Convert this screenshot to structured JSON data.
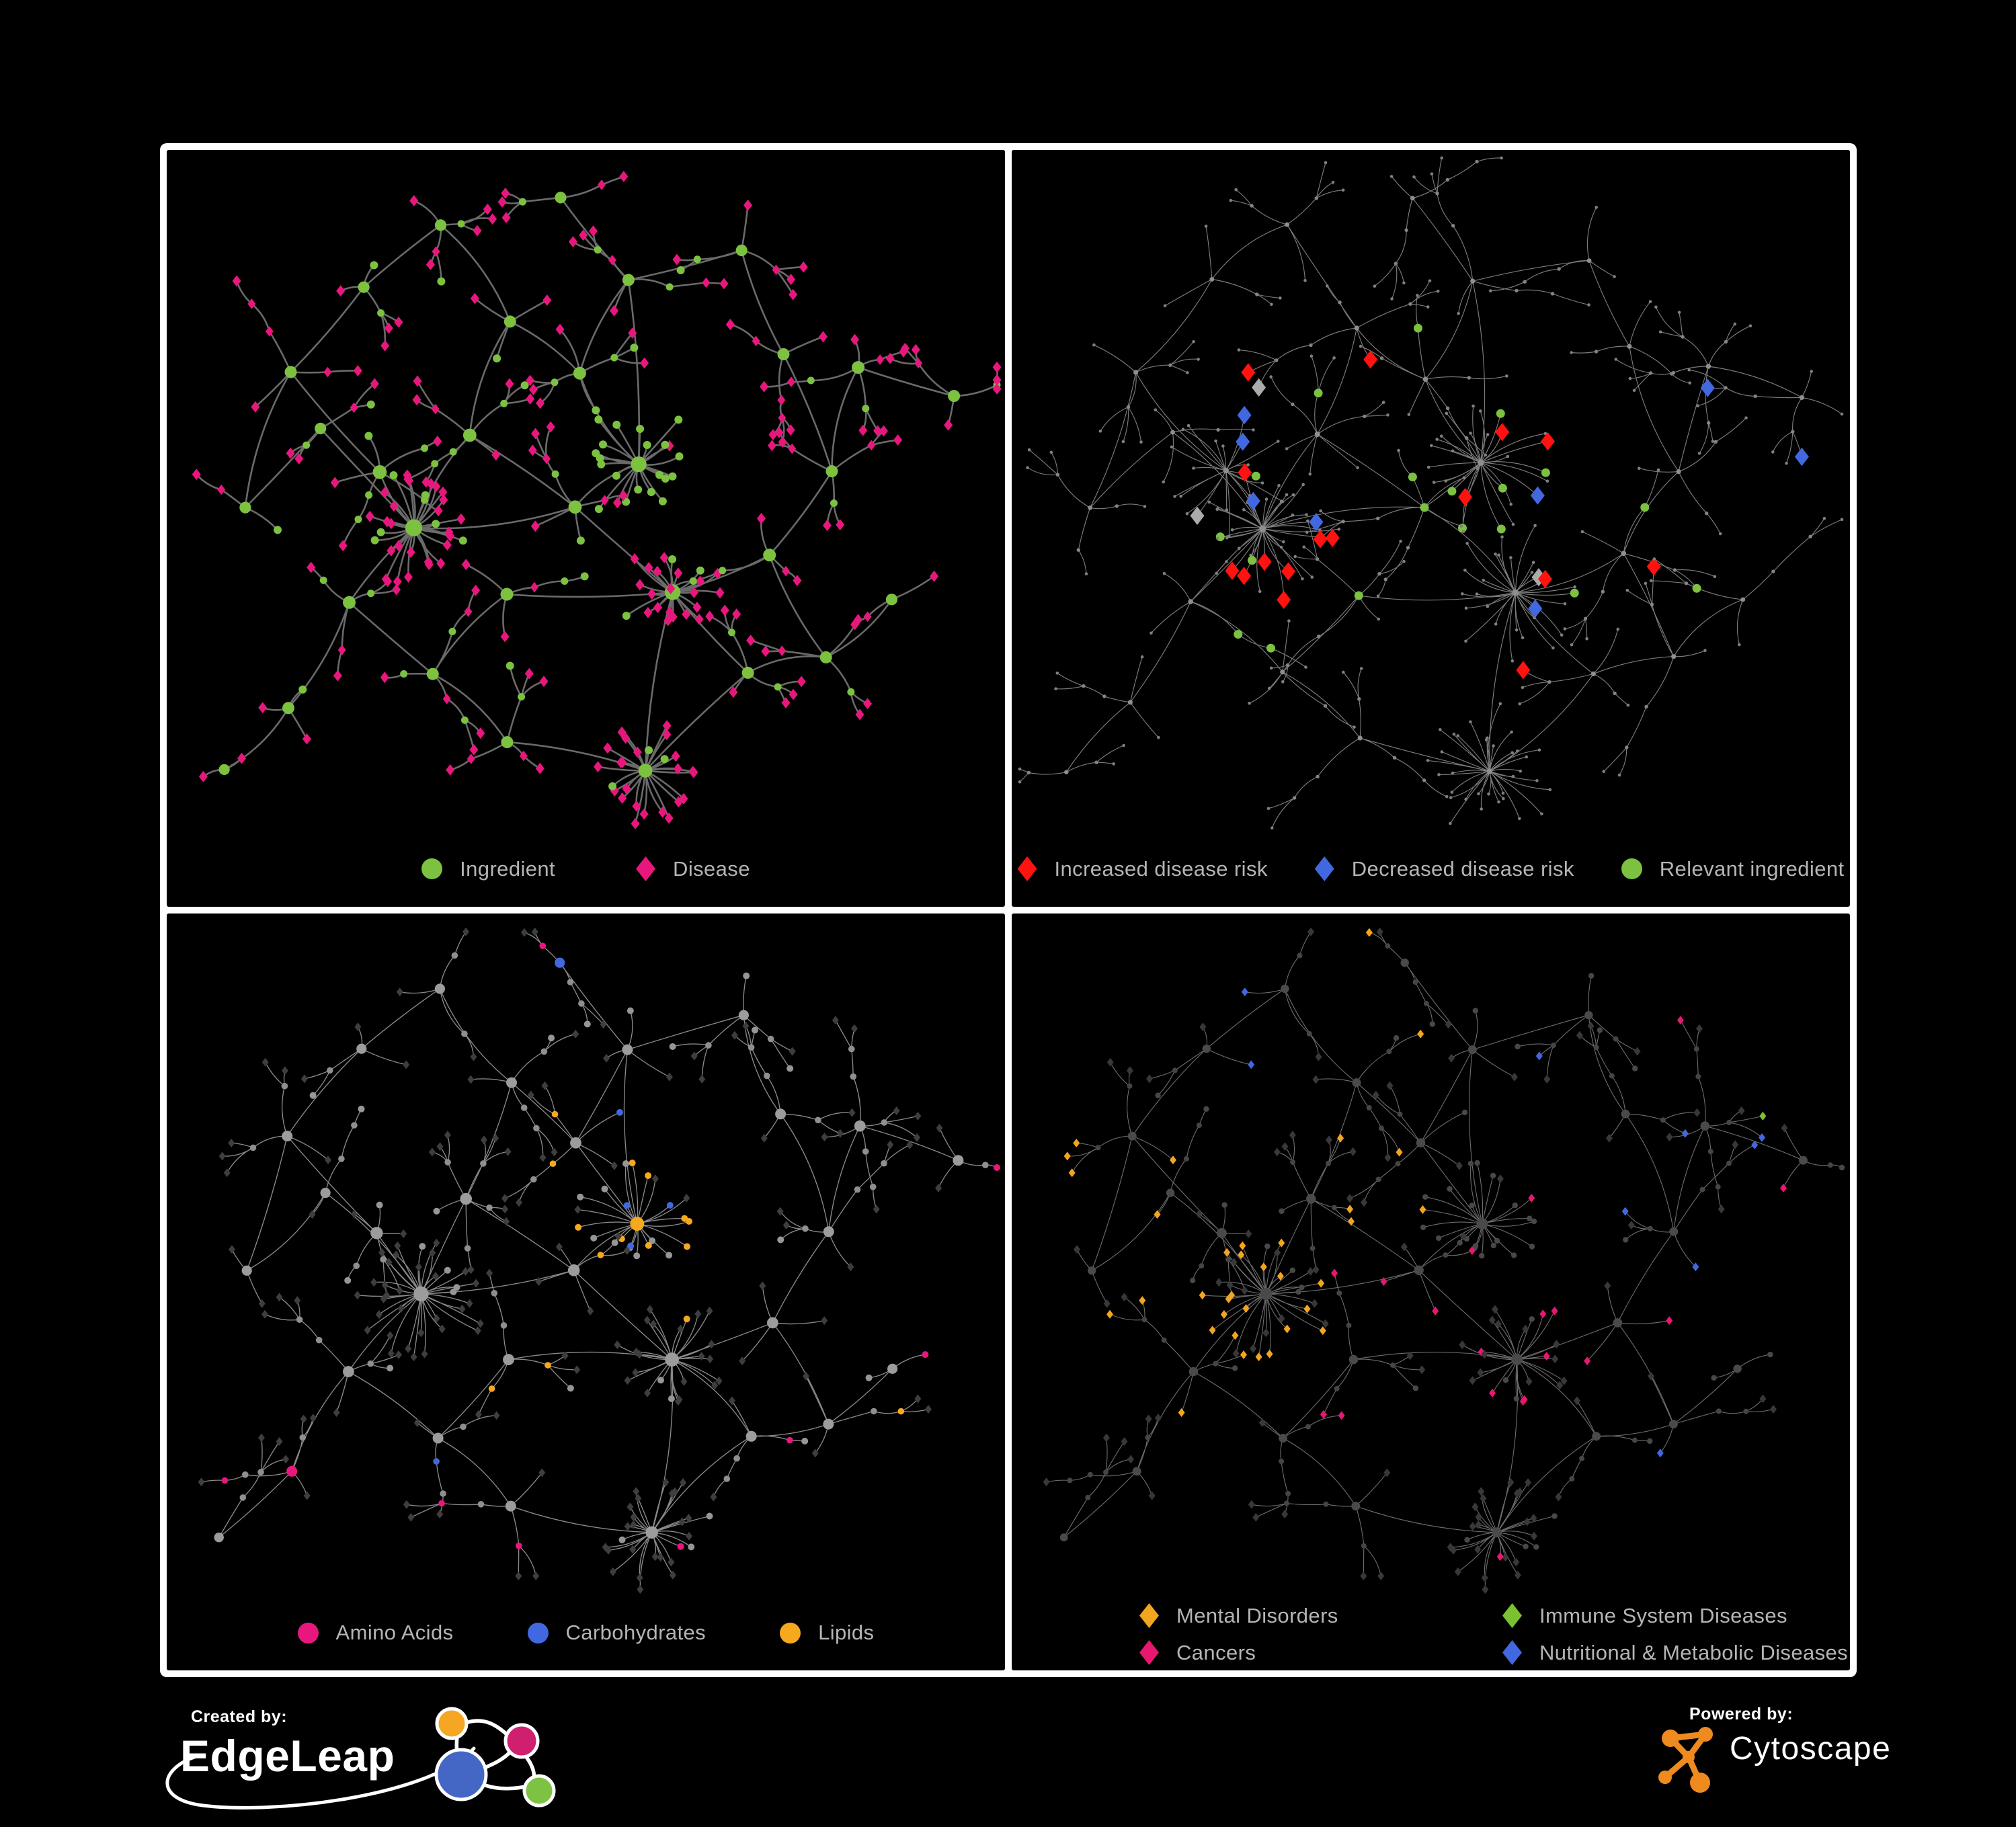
{
  "page": {
    "background": "#000000",
    "frame_color": "#ffffff"
  },
  "footer": {
    "created_by_label": "Created by:",
    "created_by_brand": "EdgeLeap",
    "powered_by_label": "Powered by:",
    "powered_by_brand": "Cytoscape",
    "edgeleap_logo_colors": {
      "orange": "#F5A623",
      "pink": "#D01F6F",
      "blue": "#4467C6",
      "green": "#7DC242",
      "stroke": "#ffffff"
    },
    "cytoscape_logo_color": "#EF8A1F"
  },
  "network": {
    "seeds": {
      "A": 1337,
      "B": 4242,
      "C": 9001
    },
    "spread": {
      "A": 1.0,
      "B": 1.22,
      "C": 1.08
    },
    "leaf_mult": {
      "A": 1.0,
      "B": 1.25,
      "C": 1.05
    },
    "hubs": [
      [
        0.285,
        0.573,
        30,
        1.7
      ],
      [
        0.233,
        0.475,
        16,
        1.2
      ],
      [
        0.353,
        0.42,
        14,
        1.1
      ],
      [
        0.567,
        0.464,
        22,
        1.5,
        0.85
      ],
      [
        0.61,
        0.671,
        22,
        1.5
      ],
      [
        0.49,
        0.323,
        12,
        1.0
      ],
      [
        0.404,
        0.236,
        10,
        0.9
      ],
      [
        0.319,
        0.073,
        8,
        0.8
      ],
      [
        0.216,
        0.171,
        8,
        0.8
      ],
      [
        0.122,
        0.323,
        8,
        0.9
      ],
      [
        0.07,
        0.54,
        6,
        0.8
      ],
      [
        0.199,
        0.692,
        10,
        1.0
      ],
      [
        0.122,
        0.855,
        8,
        0.9
      ],
      [
        0.036,
        0.964,
        5,
        0.7
      ],
      [
        0.31,
        0.801,
        9,
        0.9
      ],
      [
        0.404,
        0.91,
        8,
        0.9
      ],
      [
        0.58,
        0.955,
        26,
        1.2
      ],
      [
        0.713,
        0.801,
        9,
        0.9
      ],
      [
        0.807,
        0.779,
        8,
        0.9
      ],
      [
        0.893,
        0.692,
        6,
        0.8
      ],
      [
        0.739,
        0.616,
        10,
        1.0
      ],
      [
        0.816,
        0.475,
        9,
        0.9
      ],
      [
        0.85,
        0.307,
        12,
        1.0
      ],
      [
        0.97,
        0.355,
        10,
        0.9
      ],
      [
        0.747,
        0.279,
        9,
        0.9
      ],
      [
        0.696,
        0.127,
        8,
        0.8
      ],
      [
        0.559,
        0.171,
        9,
        0.9
      ],
      [
        0.473,
        0.04,
        7,
        0.8
      ],
      [
        0.165,
        0.41,
        7,
        0.8
      ],
      [
        0.49,
        0.54,
        12,
        1.1
      ],
      [
        0.404,
        0.671,
        10,
        1.0
      ]
    ],
    "links": [
      [
        0,
        1
      ],
      [
        0,
        2
      ],
      [
        0,
        11
      ],
      [
        0,
        28
      ],
      [
        0,
        29
      ],
      [
        1,
        9
      ],
      [
        9,
        10
      ],
      [
        8,
        9
      ],
      [
        7,
        8
      ],
      [
        2,
        6
      ],
      [
        5,
        6
      ],
      [
        3,
        5
      ],
      [
        3,
        29
      ],
      [
        4,
        29
      ],
      [
        4,
        30
      ],
      [
        14,
        30
      ],
      [
        11,
        14
      ],
      [
        11,
        12
      ],
      [
        12,
        13
      ],
      [
        14,
        15
      ],
      [
        15,
        16
      ],
      [
        4,
        16
      ],
      [
        4,
        17
      ],
      [
        17,
        18
      ],
      [
        18,
        19
      ],
      [
        16,
        17
      ],
      [
        4,
        20
      ],
      [
        20,
        21
      ],
      [
        21,
        22
      ],
      [
        22,
        23
      ],
      [
        21,
        24
      ],
      [
        24,
        25
      ],
      [
        25,
        26
      ],
      [
        26,
        27
      ],
      [
        5,
        26
      ],
      [
        2,
        29
      ],
      [
        28,
        10
      ],
      [
        3,
        26
      ],
      [
        18,
        20
      ],
      [
        6,
        7
      ]
    ]
  },
  "panels": [
    {
      "name": "ingredient-disease-network",
      "geometry": "A",
      "style_seed": 11,
      "style": {
        "edge": {
          "color": "#6A6A6A",
          "width": 2.6
        },
        "hub": {
          "shape": "circle",
          "color": "#7CC240",
          "r": 9
        },
        "joint": {
          "shape": "circle",
          "color": "#7CC240",
          "r": 5.5
        },
        "cleaf": {
          "shape": "circle",
          "color": "#7CC240",
          "r": 6
        },
        "leaf": {
          "shape": "diamond",
          "color": "#E8177D",
          "s": 6.5
        },
        "rules": [
          {
            "types": [
              "joint"
            ],
            "prob": 0.45,
            "palette": {
              "#E8177D": 1
            },
            "override": {
              "shape": "diamond",
              "s": 6
            }
          }
        ]
      },
      "legend": {
        "items": [
          {
            "shape": "circle",
            "color": "#7CC240",
            "label": "Ingredient"
          },
          {
            "shape": "diamond",
            "color": "#E8177D",
            "label": "Disease"
          }
        ]
      }
    },
    {
      "name": "disease-risk-network",
      "geometry": "B",
      "style_seed": 22,
      "style": {
        "edge": {
          "color": "#7C7C7C",
          "width": 1.15
        },
        "hub": {
          "shape": "circle",
          "color": "#8F8F8F",
          "r": 3.6
        },
        "joint": {
          "shape": "circle",
          "color": "#858585",
          "r": 2.7
        },
        "cleaf": {
          "shape": "circle",
          "color": "#808080",
          "r": 2.3
        },
        "leaf": {
          "shape": "circle",
          "color": "#808080",
          "r": 2.3
        },
        "rules": [
          {
            "types": [
              "leaf",
              "cleaf"
            ],
            "hubs": [
              0,
              1,
              2,
              3,
              4,
              5,
              6,
              26,
              29
            ],
            "prob": 0.13,
            "palette": {
              "#FF1310": 0.5,
              "#4168E0": 0.2,
              "#ABABAB": 0.3
            },
            "override": {
              "shape": "diamond",
              "s": 10.5
            }
          },
          {
            "types": [
              "leaf"
            ],
            "hubs": [
              1,
              28
            ],
            "prob": 0.22,
            "palette": {
              "#4168E0": 0.8,
              "#ABABAB": 0.2
            },
            "override": {
              "shape": "diamond",
              "s": 10.5
            }
          },
          {
            "types": [
              "leaf"
            ],
            "hubs": [
              17,
              18,
              20,
              21
            ],
            "prob": 0.14,
            "palette": {
              "#FF1310": 0.8,
              "#ABABAB": 0.2
            },
            "override": {
              "shape": "diamond",
              "s": 10.5
            }
          },
          {
            "types": [
              "leaf"
            ],
            "hubs": [
              23
            ],
            "prob": 0.3,
            "palette": {
              "#4168E0": 1
            },
            "override": {
              "shape": "diamond",
              "s": 10.5
            }
          },
          {
            "types": [
              "hub",
              "joint",
              "cleaf"
            ],
            "hubs": [
              0,
              1,
              2,
              3,
              4,
              5,
              11,
              20,
              26,
              29,
              30
            ],
            "prob": 0.2,
            "palette": {
              "#7CC240": 1
            },
            "override": {
              "shape": "circle",
              "r": 6.5
            }
          }
        ]
      },
      "legend": {
        "items": [
          {
            "shape": "diamond",
            "color": "#FF1310",
            "label": "Increased disease risk"
          },
          {
            "shape": "diamond",
            "color": "#4168E0",
            "label": "Decreased disease risk"
          },
          {
            "shape": "circle",
            "color": "#7CC240",
            "label": "Relevant ingredient"
          }
        ]
      }
    },
    {
      "name": "nutrient-class-network",
      "geometry": "C",
      "style_seed": 33,
      "style": {
        "edge": {
          "color": "#8A8A8A",
          "width": 1.35
        },
        "hub": {
          "shape": "circle",
          "color": "#9C9C9C",
          "r": 8
        },
        "joint": {
          "shape": "circle",
          "color": "#8F8F8F",
          "r": 4.8
        },
        "cleaf": {
          "shape": "circle",
          "color": "#969696",
          "r": 5
        },
        "leaf": {
          "shape": "diamond",
          "color": "#3E3E3E",
          "s": 5
        },
        "rules": [
          {
            "types": [
              "hub",
              "joint",
              "cleaf"
            ],
            "hubs": [
              3,
              5,
              29
            ],
            "prob": 0.55,
            "palette": {
              "#F6A91F": 0.8,
              "#4168E0": 0.2
            }
          },
          {
            "types": [
              "hub",
              "joint",
              "cleaf"
            ],
            "hubs": [
              4,
              26,
              30
            ],
            "prob": 0.3,
            "palette": {
              "#F6A91F": 0.7,
              "#4168E0": 0.3
            }
          },
          {
            "types": [
              "hub",
              "joint",
              "cleaf"
            ],
            "hubs": [
              9,
              10,
              12,
              13,
              14,
              15,
              16,
              17,
              19,
              22,
              23,
              27
            ],
            "prob": 0.2,
            "palette": {
              "#E8177D": 0.85,
              "#4168E0": 0.15
            }
          },
          {
            "types": [
              "hub",
              "joint",
              "cleaf"
            ],
            "prob": 0.05,
            "palette": {
              "#F6A91F": 0.5,
              "#E8177D": 0.3,
              "#4168E0": 0.2
            }
          }
        ]
      },
      "legend": {
        "items": [
          {
            "shape": "circle",
            "color": "#E8177D",
            "label": "Amino Acids"
          },
          {
            "shape": "circle",
            "color": "#4168E0",
            "label": "Carbohydrates"
          },
          {
            "shape": "circle",
            "color": "#F6A91F",
            "label": "Lipids"
          }
        ]
      }
    },
    {
      "name": "disease-category-network",
      "geometry": "C",
      "style_seed": 44,
      "style": {
        "edge": {
          "color": "#6E6E6E",
          "width": 1.1
        },
        "hub": {
          "shape": "circle",
          "color": "#4A4A4A",
          "r": 6.5
        },
        "joint": {
          "shape": "circle",
          "color": "#454545",
          "r": 4
        },
        "cleaf": {
          "shape": "circle",
          "color": "#484848",
          "r": 4.2
        },
        "leaf": {
          "shape": "diamond",
          "color": "#383838",
          "s": 5
        },
        "rules": [
          {
            "types": [
              "leaf"
            ],
            "hubs": [
              0,
              1,
              9,
              11,
              28
            ],
            "prob": 0.6,
            "palette": {
              "#F2A61F": 1
            }
          },
          {
            "types": [
              "leaf"
            ],
            "hubs": [
              2,
              6
            ],
            "prob": 0.25,
            "palette": {
              "#F2A61F": 1
            }
          },
          {
            "types": [
              "leaf"
            ],
            "hubs": [
              4,
              20,
              29,
              30
            ],
            "prob": 0.45,
            "palette": {
              "#E8176F": 1
            }
          },
          {
            "types": [
              "leaf"
            ],
            "hubs": [
              3
            ],
            "prob": 0.2,
            "palette": {
              "#E8176F": 0.6,
              "#4168E0": 0.4
            }
          },
          {
            "types": [
              "leaf"
            ],
            "hubs": [
              17,
              18,
              19,
              21,
              22,
              24,
              25
            ],
            "prob": 0.4,
            "palette": {
              "#4168E0": 1
            }
          },
          {
            "types": [
              "leaf"
            ],
            "hubs": [
              7,
              8,
              26,
              27
            ],
            "prob": 0.22,
            "palette": {
              "#4168E0": 0.6,
              "#F2A61F": 0.4
            }
          },
          {
            "types": [
              "leaf"
            ],
            "hubs": [
              23
            ],
            "prob": 0.5,
            "palette": {
              "#E8176F": 1
            }
          },
          {
            "types": [
              "leaf",
              "cleaf"
            ],
            "prob": 0.05,
            "palette": {
              "#4168E0": 0.45,
              "#E8176F": 0.2,
              "#F2A61F": 0.2,
              "#7CC230": 0.15
            }
          }
        ]
      },
      "legend": {
        "items": [
          {
            "shape": "diamond",
            "color": "#F2A61F",
            "label": "Mental Disorders"
          },
          {
            "shape": "diamond",
            "color": "#7CC230",
            "label": "Immune System Diseases"
          },
          {
            "shape": "diamond",
            "color": "#E8176F",
            "label": "Cancers"
          },
          {
            "shape": "diamond",
            "color": "#4168E0",
            "label": "Nutritional & Metabolic Diseases"
          }
        ]
      }
    }
  ]
}
